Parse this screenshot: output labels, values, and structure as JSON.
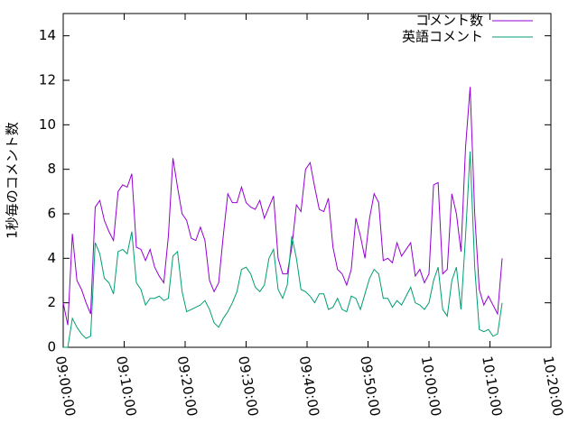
{
  "chart_data": {
    "type": "line",
    "ylabel": "1秒毎のコメント数",
    "x": [
      "09:00:00",
      "09:00:45",
      "09:01:30",
      "09:02:15",
      "09:03:00",
      "09:03:45",
      "09:04:30",
      "09:05:15",
      "09:06:00",
      "09:06:45",
      "09:07:30",
      "09:08:15",
      "09:09:00",
      "09:09:45",
      "09:10:30",
      "09:11:15",
      "09:12:00",
      "09:12:45",
      "09:13:30",
      "09:14:15",
      "09:15:00",
      "09:15:45",
      "09:16:30",
      "09:17:15",
      "09:18:00",
      "09:18:45",
      "09:19:30",
      "09:20:15",
      "09:21:00",
      "09:21:45",
      "09:22:30",
      "09:23:15",
      "09:24:00",
      "09:24:45",
      "09:25:30",
      "09:26:15",
      "09:27:00",
      "09:27:45",
      "09:28:30",
      "09:29:15",
      "09:30:00",
      "09:30:45",
      "09:31:30",
      "09:32:15",
      "09:33:00",
      "09:33:45",
      "09:34:30",
      "09:35:15",
      "09:36:00",
      "09:36:45",
      "09:37:30",
      "09:38:15",
      "09:39:00",
      "09:39:45",
      "09:40:30",
      "09:41:15",
      "09:42:00",
      "09:42:45",
      "09:43:30",
      "09:44:15",
      "09:45:00",
      "09:45:45",
      "09:46:30",
      "09:47:15",
      "09:48:00",
      "09:48:45",
      "09:49:30",
      "09:50:15",
      "09:51:00",
      "09:51:45",
      "09:52:30",
      "09:53:15",
      "09:54:00",
      "09:54:45",
      "09:55:30",
      "09:56:15",
      "09:57:00",
      "09:57:45",
      "09:58:30",
      "09:59:15",
      "10:00:00",
      "10:00:45",
      "10:01:30",
      "10:02:15",
      "10:03:00",
      "10:03:45",
      "10:04:30",
      "10:05:15",
      "10:06:00",
      "10:06:45",
      "10:07:30",
      "10:08:15",
      "10:09:00",
      "10:09:45",
      "10:10:30",
      "10:11:15",
      "10:12:00"
    ],
    "series": [
      {
        "name": "コメント数",
        "color": "#9400d3",
        "values": [
          2.0,
          1.0,
          5.1,
          3.0,
          2.6,
          2.0,
          1.5,
          6.3,
          6.6,
          5.7,
          5.2,
          4.8,
          7.0,
          7.3,
          7.2,
          7.8,
          4.5,
          4.4,
          3.9,
          4.4,
          3.6,
          3.2,
          2.9,
          5.0,
          8.5,
          7.2,
          6.0,
          5.7,
          4.9,
          4.8,
          5.4,
          4.8,
          3.0,
          2.5,
          2.9,
          5.0,
          6.9,
          6.5,
          6.5,
          7.2,
          6.5,
          6.3,
          6.2,
          6.6,
          5.8,
          6.3,
          6.8,
          4.0,
          3.3,
          3.3,
          4.5,
          6.4,
          6.1,
          8.0,
          8.3,
          7.2,
          6.2,
          6.1,
          6.7,
          4.5,
          3.5,
          3.3,
          2.8,
          3.5,
          5.8,
          5.0,
          4.0,
          5.8,
          6.9,
          6.5,
          3.9,
          4.0,
          3.8,
          4.7,
          4.1,
          4.4,
          4.7,
          3.2,
          3.5,
          2.9,
          3.3,
          7.3,
          7.4,
          3.3,
          3.5,
          6.9,
          6.0,
          4.3,
          9.0,
          11.7,
          6.0,
          2.6,
          1.9,
          2.3,
          1.9,
          1.5,
          4.0
        ]
      },
      {
        "name": "英語コメント",
        "color": "#009e73",
        "values": [
          0,
          0,
          1.3,
          0.9,
          0.6,
          0.4,
          0.5,
          4.7,
          4.2,
          3.1,
          2.9,
          2.4,
          4.3,
          4.4,
          4.2,
          5.2,
          2.9,
          2.6,
          1.9,
          2.2,
          2.2,
          2.3,
          2.1,
          2.2,
          4.1,
          4.3,
          2.5,
          1.6,
          1.7,
          1.8,
          1.9,
          2.1,
          1.7,
          1.1,
          0.9,
          1.3,
          1.6,
          2.0,
          2.5,
          3.5,
          3.6,
          3.3,
          2.7,
          2.5,
          2.8,
          4.0,
          4.4,
          2.6,
          2.2,
          2.8,
          5.0,
          4.0,
          2.6,
          2.5,
          2.3,
          2.0,
          2.4,
          2.4,
          1.7,
          1.8,
          2.2,
          1.7,
          1.6,
          2.3,
          2.2,
          1.7,
          2.4,
          3.1,
          3.5,
          3.3,
          2.2,
          2.2,
          1.8,
          2.1,
          1.9,
          2.3,
          2.7,
          2.0,
          1.9,
          1.7,
          2.0,
          3.0,
          3.6,
          1.7,
          1.4,
          3.0,
          3.6,
          1.7,
          5.0,
          8.8,
          3.6,
          0.8,
          0.7,
          0.8,
          0.5,
          0.6,
          2.0
        ]
      }
    ],
    "xlim": [
      "09:00:00",
      "10:20:00"
    ],
    "xticks": [
      "09:00:00",
      "09:10:00",
      "09:20:00",
      "09:30:00",
      "09:40:00",
      "09:50:00",
      "10:00:00",
      "10:10:00",
      "10:20:00"
    ],
    "ylim": [
      0,
      15
    ],
    "yticks": [
      0,
      2,
      4,
      6,
      8,
      10,
      12,
      14
    ],
    "legend": "top-right"
  }
}
